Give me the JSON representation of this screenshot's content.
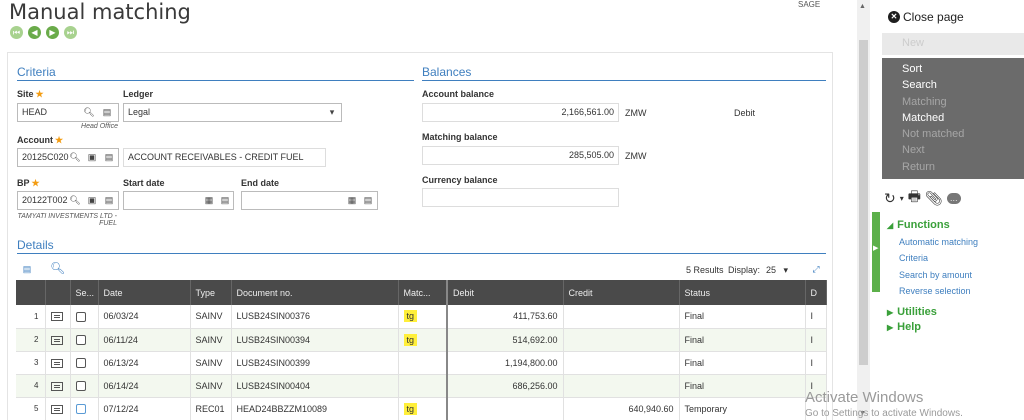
{
  "header": {
    "title": "Manual matching",
    "sage_label": "SAGE"
  },
  "criteria": {
    "section_title": "Criteria",
    "site_label": "Site",
    "site_value": "HEAD",
    "site_desc": "Head Office",
    "ledger_label": "Ledger",
    "ledger_value": "Legal",
    "account_label": "Account",
    "account_value": "20125C020",
    "account_desc": "ACCOUNT RECEIVABLES - CREDIT FUEL",
    "bp_label": "BP",
    "bp_value": "20122T002",
    "bp_desc_line1": "TAMYATI INVESTMENTS LTD -",
    "bp_desc_line2": "FUEL",
    "start_date_label": "Start date",
    "end_date_label": "End date"
  },
  "balances": {
    "section_title": "Balances",
    "account_balance_label": "Account balance",
    "account_balance_value": "2,166,561.00",
    "account_balance_currency": "ZMW",
    "account_balance_side": "Debit",
    "matching_balance_label": "Matching balance",
    "matching_balance_value": "285,505.00",
    "matching_balance_currency": "ZMW",
    "currency_balance_label": "Currency balance"
  },
  "details": {
    "section_title": "Details",
    "results_text": "5 Results",
    "display_label": "Display:",
    "display_value": "25",
    "columns": [
      "Se...",
      "Date",
      "Type",
      "Document no.",
      "Matc...",
      "Debit",
      "Credit",
      "Status",
      "D"
    ],
    "rows": [
      {
        "index": "1",
        "date": "06/03/24",
        "type": "SAINV",
        "doc": "LUSB24SIN00376",
        "match": "tg",
        "debit": "411,753.60",
        "credit": "",
        "status": "Final",
        "d": "I"
      },
      {
        "index": "2",
        "date": "06/11/24",
        "type": "SAINV",
        "doc": "LUSB24SIN00394",
        "match": "tg",
        "debit": "514,692.00",
        "credit": "",
        "status": "Final",
        "d": "I"
      },
      {
        "index": "3",
        "date": "06/13/24",
        "type": "SAINV",
        "doc": "LUSB24SIN00399",
        "match": "",
        "debit": "1,194,800.00",
        "credit": "",
        "status": "Final",
        "d": "I"
      },
      {
        "index": "4",
        "date": "06/14/24",
        "type": "SAINV",
        "doc": "LUSB24SIN00404",
        "match": "",
        "debit": "686,256.00",
        "credit": "",
        "status": "Final",
        "d": "I"
      },
      {
        "index": "5",
        "date": "07/12/24",
        "type": "REC01",
        "doc": "HEAD24BBZZM10089",
        "match": "tg",
        "debit": "",
        "credit": "640,940.60",
        "status": "Temporary",
        "d": ""
      }
    ]
  },
  "panel": {
    "close_label": "Close page",
    "new_label": "New",
    "menu": [
      {
        "label": "Sort",
        "enabled": true
      },
      {
        "label": "Search",
        "enabled": true
      },
      {
        "label": "Matching",
        "enabled": false
      },
      {
        "label": "Matched",
        "enabled": true
      },
      {
        "label": "Not matched",
        "enabled": false
      },
      {
        "label": "Next",
        "enabled": false
      },
      {
        "label": "Return",
        "enabled": false
      }
    ],
    "functions_title": "Functions",
    "functions": [
      "Automatic matching",
      "Criteria",
      "Search by amount",
      "Reverse selection"
    ],
    "utilities_title": "Utilities",
    "help_title": "Help"
  },
  "watermark": {
    "line1": "Activate Windows",
    "line2": "Go to Settings to activate Windows."
  },
  "colors": {
    "accent_blue": "#3f7fbf",
    "accent_green": "#5cb04a",
    "menu_bg": "#6b6b6b",
    "grid_header": "#4a4a4a",
    "match_highlight": "#ffef3a",
    "required_star": "#f39c12"
  }
}
